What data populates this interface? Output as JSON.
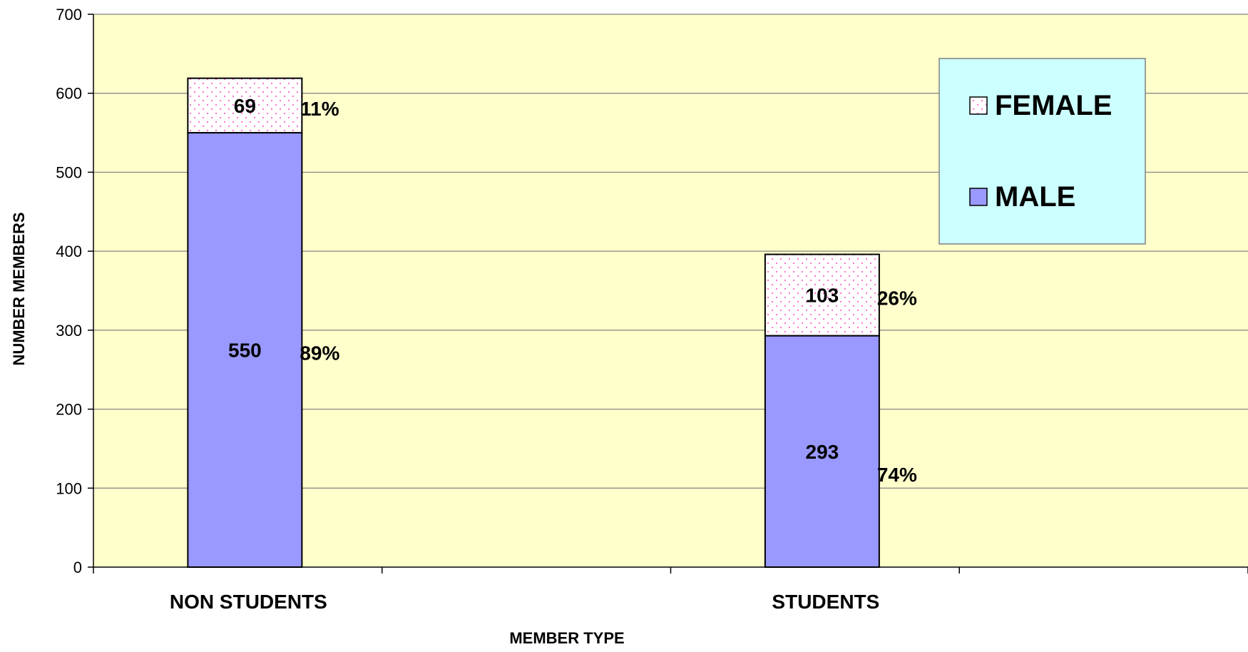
{
  "chart_data": {
    "type": "bar",
    "stacked": true,
    "categories": [
      "NON STUDENTS",
      "STUDENTS"
    ],
    "series": [
      {
        "name": "MALE",
        "values": [
          550,
          293
        ],
        "percent_labels": [
          "89%",
          "74%"
        ],
        "color": "#9999ff",
        "pattern": "solid"
      },
      {
        "name": "FEMALE",
        "values": [
          69,
          103
        ],
        "percent_labels": [
          "11%",
          "26%"
        ],
        "color": "#ffffff",
        "pattern": "pink-dots",
        "dot_color": "#ff66cc"
      }
    ],
    "xlabel": "MEMBER TYPE",
    "ylabel": "NUMBER MEMBERS",
    "ylim": [
      0,
      700
    ],
    "yticks": [
      0,
      100,
      200,
      300,
      400,
      500,
      600,
      700
    ],
    "grid": true,
    "legend_position": "top-right",
    "plot_background": "#ffffcc",
    "legend_background": "#ccffff",
    "grid_color": "#808080"
  }
}
